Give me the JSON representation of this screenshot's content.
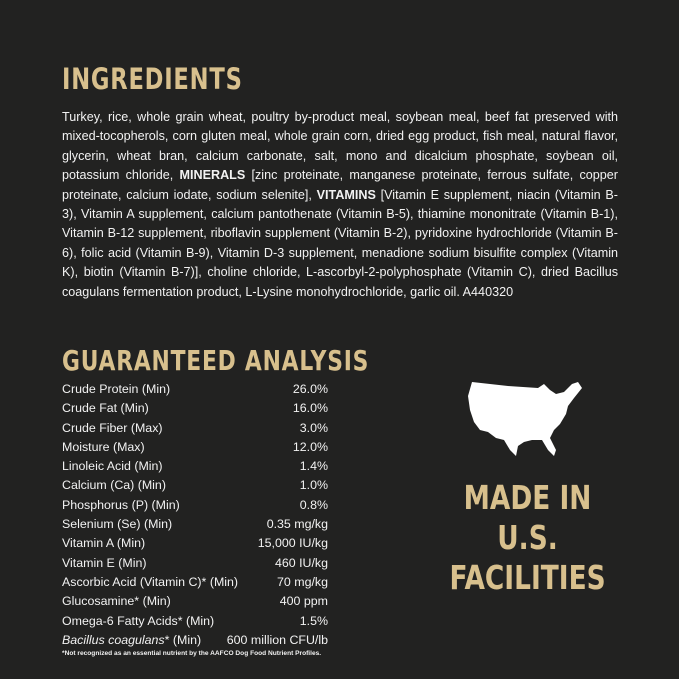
{
  "ingredients": {
    "title": "INGREDIENTS",
    "part1": "Turkey, rice, whole grain wheat, poultry by-product meal, soybean meal, beef fat preserved with mixed-tocopherols, corn gluten meal, whole grain corn, dried egg product, fish meal, natural flavor, glycerin, wheat bran, calcium carbonate, salt, mono and dicalcium phosphate, soybean oil, potassium chloride, ",
    "minerals_label": "MINERALS",
    "part2": " [zinc proteinate, manganese proteinate, ferrous sulfate, copper proteinate, calcium iodate, sodium selenite], ",
    "vitamins_label": "VITAMINS",
    "part3": " [Vitamin E supplement, niacin (Vitamin B-3), Vitamin A supplement, calcium pantothenate (Vitamin B-5), thiamine mononitrate (Vitamin B-1), Vitamin B-12 supplement, riboflavin supplement (Vitamin B-2), pyridoxine hydrochloride (Vitamin B-6), folic acid (Vitamin B-9), Vitamin D-3 supplement, menadione sodium bisulfite complex (Vitamin K), biotin (Vitamin B-7)], choline chloride, L-ascorbyl-2-polyphosphate (Vitamin C), dried Bacillus coagulans fermentation product, L-Lysine monohydrochloride, garlic oil.   A440320"
  },
  "analysis": {
    "title": "GUARANTEED ANALYSIS",
    "rows": [
      {
        "label": "Crude Protein (Min)",
        "value": "26.0%"
      },
      {
        "label": "Crude Fat (Min)",
        "value": "16.0%"
      },
      {
        "label": "Crude Fiber (Max)",
        "value": "3.0%"
      },
      {
        "label": "Moisture (Max)",
        "value": "12.0%"
      },
      {
        "label": "Linoleic Acid (Min)",
        "value": "1.4%"
      },
      {
        "label": "Calcium (Ca) (Min)",
        "value": "1.0%"
      },
      {
        "label": "Phosphorus (P) (Min)",
        "value": "0.8%"
      },
      {
        "label": "Selenium (Se) (Min)",
        "value": "0.35 mg/kg"
      },
      {
        "label": "Vitamin A (Min)",
        "value": "15,000 IU/kg"
      },
      {
        "label": "Vitamin E (Min)",
        "value": "460 IU/kg"
      },
      {
        "label": "Ascorbic Acid (Vitamin C)* (Min)",
        "value": "70 mg/kg"
      },
      {
        "label": "Glucosamine* (Min)",
        "value": "400 ppm"
      },
      {
        "label": "Omega-6 Fatty Acids* (Min)",
        "value": "1.5%"
      }
    ],
    "last_row": {
      "label_italic": "Bacillus coagulans",
      "label_rest": "* (Min)",
      "value": "600 million CFU/lb"
    },
    "footnote": "*Not recognized as an essential nutrient by the AAFCO Dog Food Nutrient Profiles."
  },
  "origin": {
    "icon": "usa-map-icon",
    "lines": [
      "MADE IN",
      "U.S.",
      "FACILITIES"
    ]
  },
  "colors": {
    "background": "#222221",
    "accent": "#d8c08d",
    "text": "#f2f2f2"
  }
}
